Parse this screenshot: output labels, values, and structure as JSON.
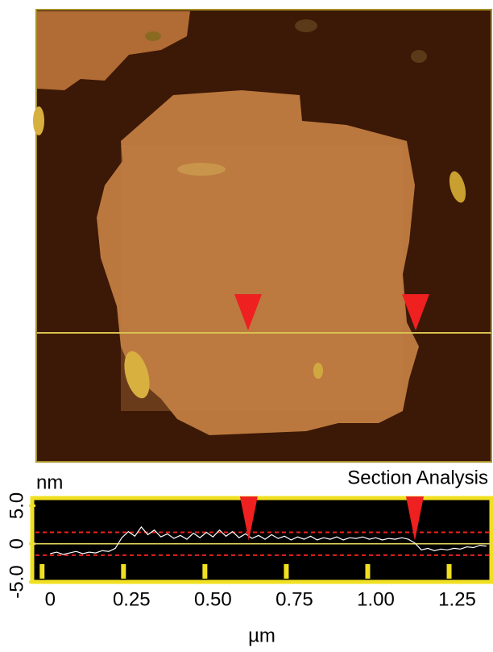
{
  "chart_data": {
    "type": "line",
    "title": "Section Analysis",
    "y_label": "nm",
    "x_label": "µm",
    "xlim": [
      -0.06,
      1.36
    ],
    "ylim": [
      -5,
      6
    ],
    "xticks": [
      0,
      0.25,
      {
        "value": 0.5,
        "label": "0.50"
      },
      0.75,
      {
        "value": 1,
        "label": "1.00"
      },
      1.25
    ],
    "yticks": [
      {
        "value": 5,
        "label": "5.0"
      },
      0,
      {
        "value": -5,
        "label": "-5.0"
      }
    ],
    "reference_line": 0,
    "dashed_levels": [
      1.5,
      -1.5
    ],
    "markers_x": [
      0.61,
      1.12
    ],
    "x": [
      0,
      0.02,
      0.04,
      0.06,
      0.08,
      0.1,
      0.12,
      0.14,
      0.16,
      0.18,
      0.2,
      0.22,
      0.24,
      0.26,
      0.28,
      0.3,
      0.32,
      0.34,
      0.36,
      0.38,
      0.4,
      0.42,
      0.44,
      0.46,
      0.48,
      0.5,
      0.52,
      0.54,
      0.56,
      0.58,
      0.6,
      0.62,
      0.64,
      0.66,
      0.68,
      0.7,
      0.72,
      0.74,
      0.76,
      0.78,
      0.8,
      0.82,
      0.84,
      0.86,
      0.88,
      0.9,
      0.92,
      0.94,
      0.96,
      0.98,
      1,
      1.02,
      1.04,
      1.06,
      1.08,
      1.1,
      1.12,
      1.14,
      1.16,
      1.18,
      1.2,
      1.22,
      1.24,
      1.26,
      1.28,
      1.3,
      1.32,
      1.34
    ],
    "series": [
      {
        "color": "#ffffff",
        "values": [
          -1.3,
          -1.1,
          -1.4,
          -1.2,
          -1.0,
          -1.3,
          -1.1,
          -1.2,
          -0.9,
          -1.0,
          -0.6,
          0.8,
          1.6,
          1.0,
          2.2,
          1.2,
          1.8,
          0.9,
          1.3,
          0.7,
          1.1,
          0.6,
          1.4,
          0.8,
          1.5,
          0.9,
          1.8,
          1.0,
          1.6,
          0.8,
          1.3,
          0.7,
          1.1,
          0.6,
          1.2,
          0.7,
          1.0,
          0.5,
          0.9,
          0.6,
          1.0,
          0.5,
          0.8,
          0.6,
          0.9,
          0.5,
          0.8,
          0.7,
          0.9,
          0.6,
          0.8,
          0.5,
          0.7,
          0.6,
          0.8,
          0.6,
          0.1,
          -0.8,
          -0.6,
          -0.9,
          -0.7,
          -0.8,
          -0.6,
          -0.7,
          -0.4,
          -0.5,
          -0.2,
          -0.3
        ]
      }
    ]
  }
}
